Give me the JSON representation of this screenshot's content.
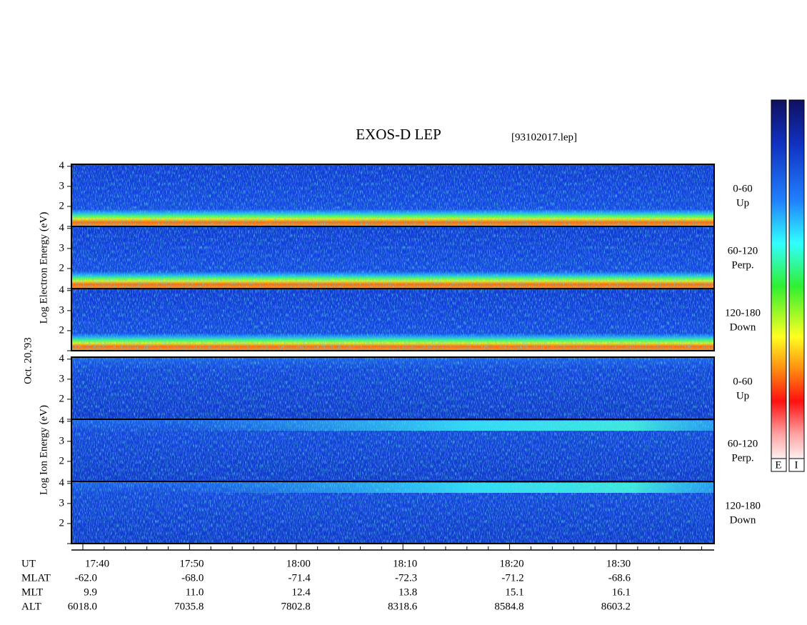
{
  "header": {
    "title": "EXOS-D LEP",
    "file": "[93102017.lep]"
  },
  "date": "Oct. 20,'93",
  "electron": {
    "axis_label": "Log Electron Energy (eV)",
    "panels": [
      {
        "pitch": "0-60",
        "direction": "Up"
      },
      {
        "pitch": "60-120",
        "direction": "Perp."
      },
      {
        "pitch": "120-180",
        "direction": "Down"
      }
    ]
  },
  "ion": {
    "axis_label": "Log Ion Energy (eV)",
    "panels": [
      {
        "pitch": "0-60",
        "direction": "Up"
      },
      {
        "pitch": "60-120",
        "direction": "Perp."
      },
      {
        "pitch": "120-180",
        "direction": "Down"
      }
    ]
  },
  "energy_ticks": [
    2,
    3,
    4
  ],
  "ephemeris": {
    "row_labels": [
      "UT",
      "MLAT",
      "MLT",
      "ALT"
    ],
    "UT": [
      "17:40",
      "17:50",
      "18:00",
      "18:10",
      "18:20",
      "18:30"
    ],
    "MLAT": [
      "-62.0",
      "-68.0",
      "-71.4",
      "-72.3",
      "-71.2",
      "-68.6"
    ],
    "MLT": [
      "9.9",
      "11.0",
      "12.4",
      "13.8",
      "15.1",
      "16.1"
    ],
    "ALT": [
      "6018.0",
      "7035.8",
      "7802.8",
      "8318.6",
      "8584.8",
      "8603.2"
    ]
  },
  "colorbar_labels": [
    "E",
    "I"
  ]
}
